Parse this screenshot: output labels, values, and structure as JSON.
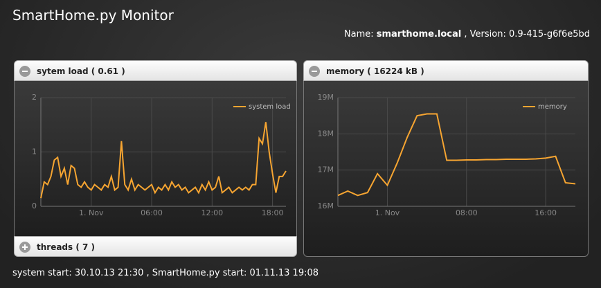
{
  "header": {
    "title": "SmartHome.py Monitor",
    "name_label": "Name:",
    "name": "smarthome.local",
    "version_label": ", Version:",
    "version": "0.9-415-g6f6e5bd"
  },
  "panels": [
    {
      "title": "sytem load ( 0.61 )",
      "chart_data": {
        "type": "line",
        "categories": [
          null,
          null,
          null,
          null,
          null,
          null,
          null,
          null,
          null,
          null,
          null,
          null,
          null,
          null,
          null,
          "1. Nov",
          null,
          null,
          null,
          null,
          null,
          null,
          null,
          null,
          null,
          null,
          null,
          null,
          null,
          null,
          null,
          null,
          null,
          "06:00",
          null,
          null,
          null,
          null,
          null,
          null,
          null,
          null,
          null,
          null,
          null,
          null,
          null,
          null,
          null,
          null,
          null,
          "12:00",
          null,
          null,
          null,
          null,
          null,
          null,
          null,
          null,
          null,
          null,
          null,
          null,
          null,
          null,
          null,
          null,
          null,
          "18:00",
          null,
          null,
          null,
          null
        ],
        "series": [
          {
            "name": "system load",
            "color": "#f7a531",
            "values": [
              0.15,
              0.45,
              0.4,
              0.55,
              0.85,
              0.9,
              0.55,
              0.7,
              0.4,
              0.75,
              0.7,
              0.4,
              0.35,
              0.45,
              0.35,
              0.3,
              0.4,
              0.35,
              0.3,
              0.4,
              0.35,
              0.55,
              0.3,
              0.35,
              1.2,
              0.4,
              0.3,
              0.5,
              0.3,
              0.4,
              0.35,
              0.3,
              0.35,
              0.4,
              0.25,
              0.35,
              0.3,
              0.4,
              0.3,
              0.45,
              0.35,
              0.4,
              0.3,
              0.35,
              0.25,
              0.3,
              0.35,
              0.25,
              0.4,
              0.3,
              0.45,
              0.3,
              0.35,
              0.55,
              0.25,
              0.3,
              0.35,
              0.25,
              0.3,
              0.35,
              0.3,
              0.35,
              0.3,
              0.4,
              0.4,
              1.25,
              1.15,
              1.55,
              1.0,
              0.6,
              0.25,
              0.55,
              0.55,
              0.65
            ]
          }
        ],
        "ylim": [
          0,
          2
        ],
        "yticks": [
          0,
          1,
          2
        ],
        "grid": true,
        "legend": "top-right"
      }
    },
    {
      "title": "threads ( 7 )"
    },
    {
      "title": "memory ( 16224 kB )",
      "chart_data": {
        "type": "line",
        "categories": [
          null,
          null,
          null,
          null,
          null,
          "1. Nov",
          null,
          null,
          null,
          null,
          null,
          null,
          null,
          "08:00",
          null,
          null,
          null,
          null,
          null,
          null,
          null,
          "16:00",
          null,
          null,
          null
        ],
        "series": [
          {
            "name": "memory",
            "color": "#f7a531",
            "values": [
              16.3,
              16.42,
              16.3,
              16.38,
              16.9,
              16.58,
              17.2,
              17.9,
              18.5,
              18.55,
              18.55,
              17.27,
              17.27,
              17.28,
              17.28,
              17.29,
              17.29,
              17.3,
              17.3,
              17.3,
              17.31,
              17.33,
              17.38,
              16.65,
              16.62
            ]
          }
        ],
        "ylim": [
          16,
          19
        ],
        "yticks": [
          {
            "value": 16,
            "label": "16M"
          },
          {
            "value": 17,
            "label": "17M"
          },
          {
            "value": 18,
            "label": "18M"
          },
          {
            "value": 19,
            "label": "19M"
          }
        ],
        "grid": true,
        "legend": "top-right"
      }
    }
  ],
  "footer": "system start: 30.10.13 21:30 , SmartHome.py start: 01.11.13 19:08"
}
